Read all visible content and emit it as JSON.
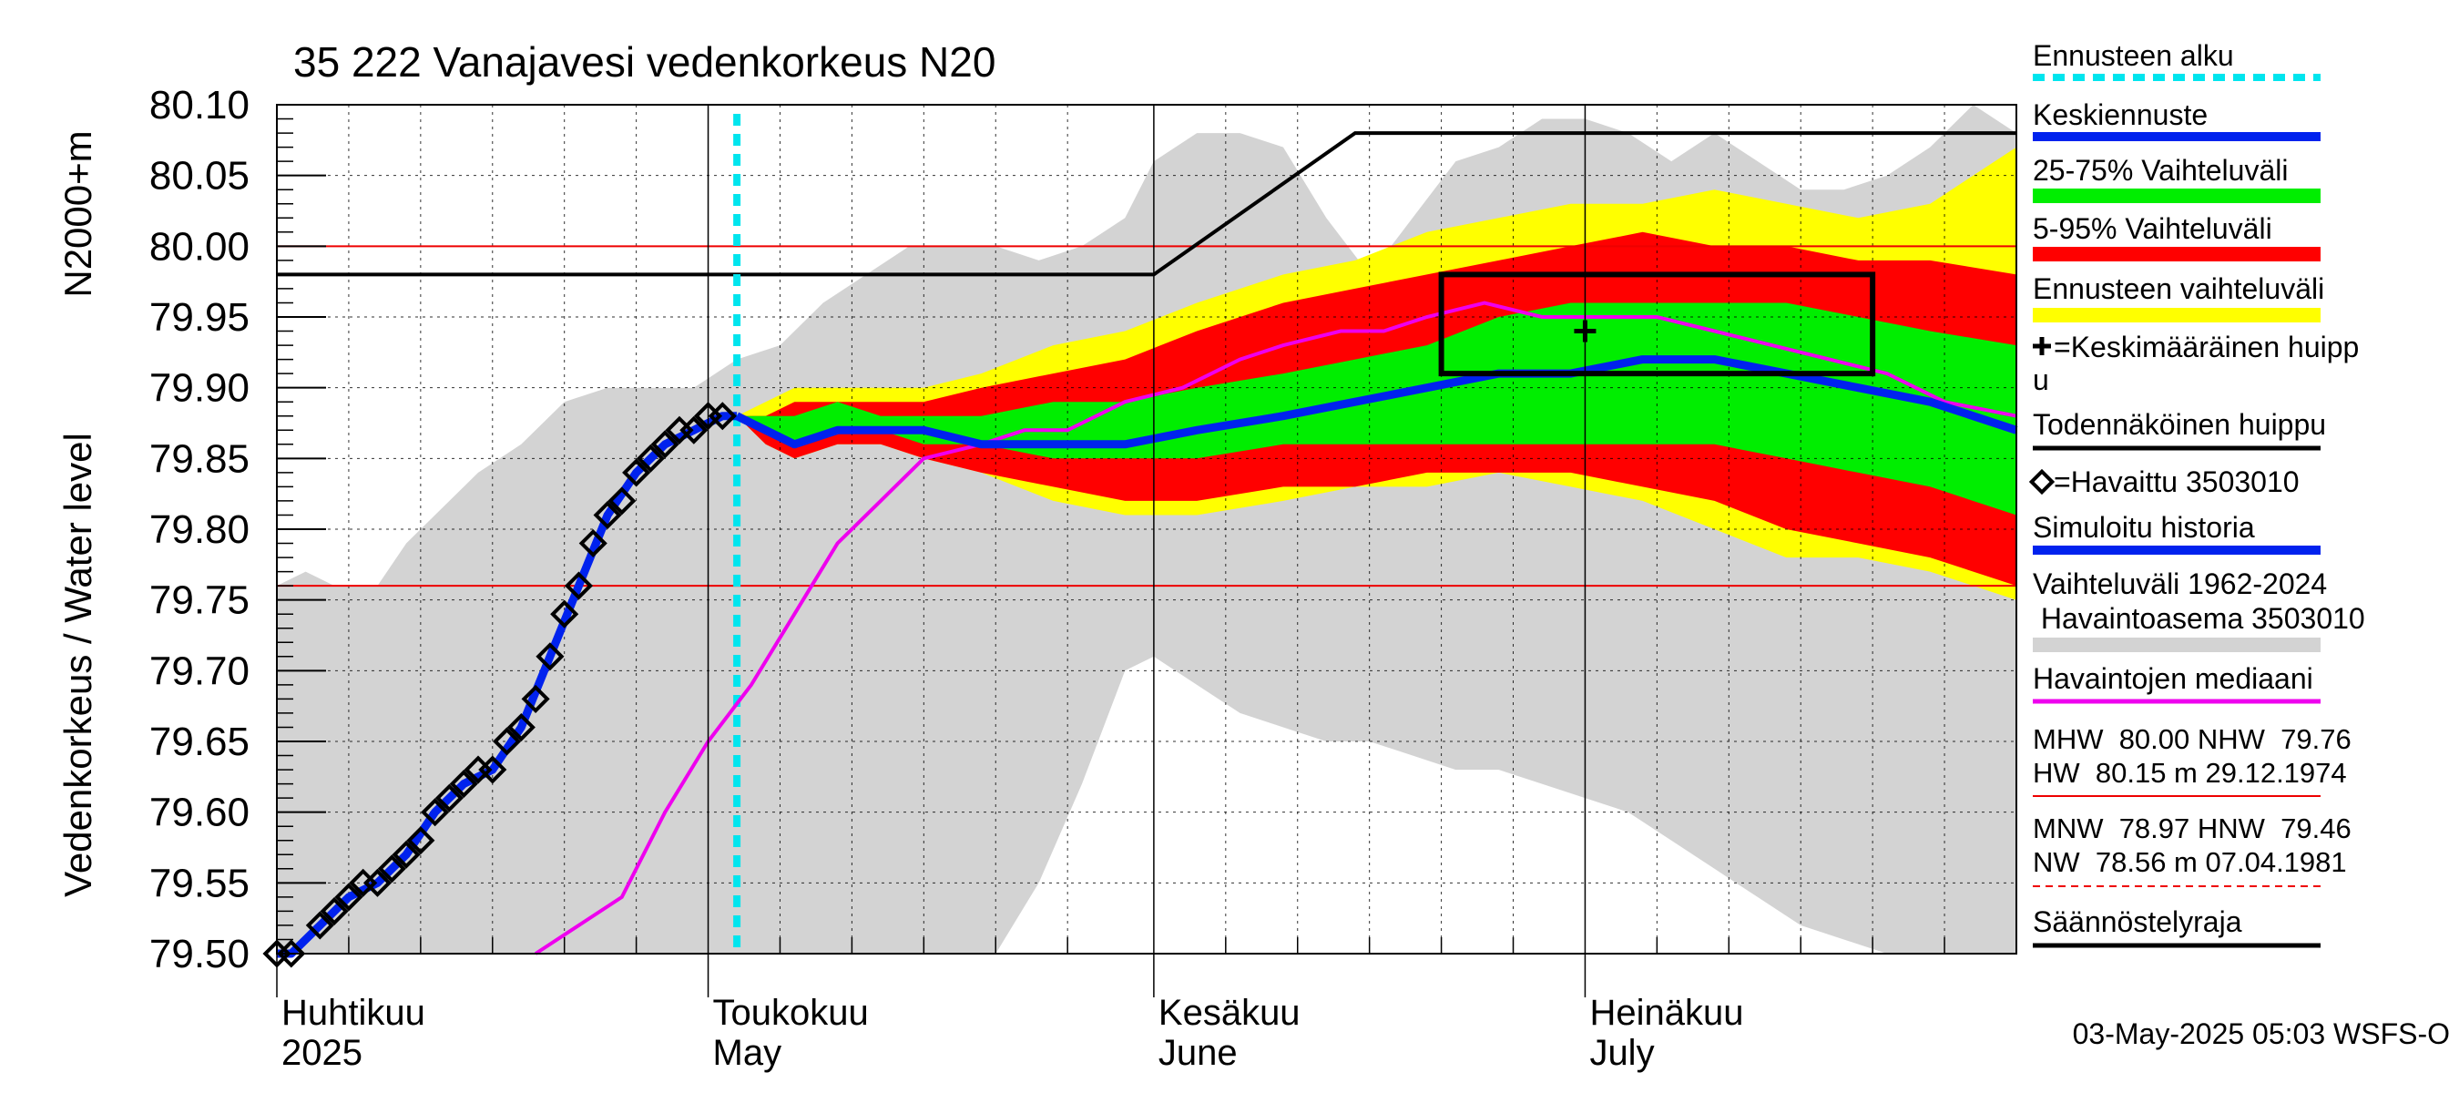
{
  "chart_data": {
    "type": "area",
    "title": "35 222 Vanajavesi vedenkorkeus N20",
    "ylabel_inner": "N2000+m",
    "ylabel_outer": "Vedenkorkeus / Water level",
    "ylim": [
      79.5,
      80.1
    ],
    "y_ticks": [
      "80.10",
      "80.05",
      "80.00",
      "79.95",
      "79.90",
      "79.85",
      "79.80",
      "79.75",
      "79.70",
      "79.65",
      "79.60",
      "79.55",
      "79.50"
    ],
    "x_start": "2025-04-01",
    "x_end": "2025-07-31",
    "grid": true,
    "month_labels": [
      {
        "date": "2025-04-01",
        "line1": "Huhtikuu",
        "line2": "2025"
      },
      {
        "date": "2025-05-01",
        "line1": "Toukokuu",
        "line2": "May"
      },
      {
        "date": "2025-06-01",
        "line1": "Kesäkuu",
        "line2": "June"
      },
      {
        "date": "2025-07-01",
        "line1": "Heinäkuu",
        "line2": "July"
      }
    ],
    "forecast_start": "2025-05-03",
    "reference_lines": {
      "MHW": 80.0,
      "NHW": 79.76
    },
    "historical_range": {
      "x": [
        "2025-04-01",
        "2025-04-03",
        "2025-04-05",
        "2025-04-08",
        "2025-04-10",
        "2025-04-12",
        "2025-04-15",
        "2025-04-18",
        "2025-04-21",
        "2025-04-24",
        "2025-04-27",
        "2025-04-30",
        "2025-05-03",
        "2025-05-06",
        "2025-05-09",
        "2025-05-12",
        "2025-05-15",
        "2025-05-18",
        "2025-05-21",
        "2025-05-24",
        "2025-05-27",
        "2025-05-30",
        "2025-06-01",
        "2025-06-04",
        "2025-06-07",
        "2025-06-10",
        "2025-06-13",
        "2025-06-16",
        "2025-06-19",
        "2025-06-22",
        "2025-06-25",
        "2025-06-28",
        "2025-07-01",
        "2025-07-04",
        "2025-07-07",
        "2025-07-10",
        "2025-07-13",
        "2025-07-16",
        "2025-07-19",
        "2025-07-22",
        "2025-07-25",
        "2025-07-28",
        "2025-07-31"
      ],
      "high": [
        79.76,
        79.77,
        79.76,
        79.76,
        79.79,
        79.81,
        79.84,
        79.86,
        79.89,
        79.9,
        79.9,
        79.9,
        79.92,
        79.93,
        79.96,
        79.98,
        80.0,
        80.0,
        80.0,
        79.99,
        80.0,
        80.02,
        80.06,
        80.08,
        80.08,
        80.07,
        80.02,
        79.98,
        80.02,
        80.06,
        80.07,
        80.09,
        80.09,
        80.08,
        80.06,
        80.08,
        80.06,
        80.04,
        80.04,
        80.05,
        80.07,
        80.1,
        80.08
      ],
      "low": [
        79.5,
        79.5,
        79.5,
        79.5,
        79.5,
        79.5,
        79.5,
        79.5,
        79.5,
        79.5,
        79.5,
        79.5,
        79.5,
        79.5,
        79.5,
        79.5,
        79.5,
        79.5,
        79.5,
        79.55,
        79.62,
        79.7,
        79.71,
        79.69,
        79.67,
        79.66,
        79.65,
        79.65,
        79.64,
        79.63,
        79.63,
        79.62,
        79.61,
        79.6,
        79.58,
        79.56,
        79.54,
        79.52,
        79.51,
        79.5,
        79.5,
        79.5,
        79.5
      ]
    },
    "forecast": {
      "x": [
        "2025-05-03",
        "2025-05-05",
        "2025-05-07",
        "2025-05-10",
        "2025-05-13",
        "2025-05-16",
        "2025-05-20",
        "2025-05-25",
        "2025-05-30",
        "2025-06-04",
        "2025-06-10",
        "2025-06-15",
        "2025-06-20",
        "2025-06-25",
        "2025-06-30",
        "2025-07-05",
        "2025-07-10",
        "2025-07-15",
        "2025-07-20",
        "2025-07-25",
        "2025-07-31"
      ],
      "p_min": [
        79.88,
        79.86,
        79.85,
        79.86,
        79.86,
        79.85,
        79.84,
        79.82,
        79.81,
        79.81,
        79.82,
        79.83,
        79.83,
        79.84,
        79.83,
        79.82,
        79.8,
        79.78,
        79.78,
        79.77,
        79.75
      ],
      "p5": [
        79.88,
        79.86,
        79.85,
        79.86,
        79.86,
        79.85,
        79.84,
        79.83,
        79.82,
        79.82,
        79.83,
        79.83,
        79.84,
        79.84,
        79.84,
        79.83,
        79.82,
        79.8,
        79.79,
        79.78,
        79.76
      ],
      "p25": [
        79.88,
        79.87,
        79.86,
        79.87,
        79.87,
        79.86,
        79.86,
        79.85,
        79.85,
        79.85,
        79.86,
        79.86,
        79.86,
        79.86,
        79.86,
        79.86,
        79.86,
        79.85,
        79.84,
        79.83,
        79.81
      ],
      "median": [
        79.88,
        79.87,
        79.86,
        79.87,
        79.87,
        79.87,
        79.86,
        79.86,
        79.86,
        79.87,
        79.88,
        79.89,
        79.9,
        79.91,
        79.91,
        79.92,
        79.92,
        79.91,
        79.9,
        79.89,
        79.87
      ],
      "p75": [
        79.88,
        79.88,
        79.88,
        79.89,
        79.88,
        79.88,
        79.88,
        79.89,
        79.89,
        79.9,
        79.91,
        79.92,
        79.93,
        79.95,
        79.96,
        79.96,
        79.96,
        79.96,
        79.95,
        79.94,
        79.93
      ],
      "p95": [
        79.88,
        79.88,
        79.89,
        79.89,
        79.89,
        79.89,
        79.9,
        79.91,
        79.92,
        79.94,
        79.96,
        79.97,
        79.98,
        79.99,
        80.0,
        80.01,
        80.0,
        80.0,
        79.99,
        79.99,
        79.98
      ],
      "p_max": [
        79.88,
        79.89,
        79.9,
        79.9,
        79.9,
        79.9,
        79.91,
        79.93,
        79.94,
        79.96,
        79.98,
        79.99,
        80.01,
        80.02,
        80.03,
        80.03,
        80.04,
        80.03,
        80.02,
        80.03,
        80.07
      ]
    },
    "observed": {
      "x": [
        "2025-04-01",
        "2025-04-02",
        "2025-04-04",
        "2025-04-05",
        "2025-04-06",
        "2025-04-07",
        "2025-04-08",
        "2025-04-09",
        "2025-04-10",
        "2025-04-11",
        "2025-04-12",
        "2025-04-13",
        "2025-04-14",
        "2025-04-15",
        "2025-04-16",
        "2025-04-17",
        "2025-04-18",
        "2025-04-19",
        "2025-04-20",
        "2025-04-21",
        "2025-04-22",
        "2025-04-23",
        "2025-04-24",
        "2025-04-25",
        "2025-04-26",
        "2025-04-27",
        "2025-04-28",
        "2025-04-29",
        "2025-04-30",
        "2025-05-01",
        "2025-05-02"
      ],
      "y": [
        79.5,
        79.5,
        79.52,
        79.53,
        79.54,
        79.55,
        79.55,
        79.56,
        79.57,
        79.58,
        79.6,
        79.61,
        79.62,
        79.63,
        79.63,
        79.65,
        79.66,
        79.68,
        79.71,
        79.74,
        79.76,
        79.79,
        79.81,
        79.82,
        79.84,
        79.85,
        79.86,
        79.87,
        79.87,
        79.88,
        79.88
      ]
    },
    "simulated_history": {
      "x": [
        "2025-04-01",
        "2025-04-02",
        "2025-04-04",
        "2025-04-06",
        "2025-04-08",
        "2025-04-10",
        "2025-04-12",
        "2025-04-14",
        "2025-04-16",
        "2025-04-18",
        "2025-04-20",
        "2025-04-22",
        "2025-04-24",
        "2025-04-26",
        "2025-04-28",
        "2025-04-30",
        "2025-05-02",
        "2025-05-03"
      ],
      "y": [
        79.5,
        79.5,
        79.52,
        79.54,
        79.55,
        79.57,
        79.6,
        79.62,
        79.63,
        79.66,
        79.71,
        79.76,
        79.81,
        79.84,
        79.86,
        79.87,
        79.88,
        79.88
      ]
    },
    "median_observed": {
      "x": [
        "2025-04-19",
        "2025-04-22",
        "2025-04-25",
        "2025-04-28",
        "2025-05-01",
        "2025-05-04",
        "2025-05-07",
        "2025-05-10",
        "2025-05-13",
        "2025-05-16",
        "2025-05-20",
        "2025-05-23",
        "2025-05-26",
        "2025-05-30",
        "2025-06-03",
        "2025-06-07",
        "2025-06-10",
        "2025-06-14",
        "2025-06-17",
        "2025-06-20",
        "2025-06-24",
        "2025-06-28",
        "2025-07-02",
        "2025-07-06",
        "2025-07-10",
        "2025-07-14",
        "2025-07-18",
        "2025-07-22",
        "2025-07-26",
        "2025-07-31"
      ],
      "y": [
        79.5,
        79.52,
        79.54,
        79.6,
        79.65,
        79.69,
        79.74,
        79.79,
        79.82,
        79.85,
        79.86,
        79.87,
        79.87,
        79.89,
        79.9,
        79.92,
        79.93,
        79.94,
        79.94,
        79.95,
        79.96,
        79.95,
        79.95,
        79.95,
        79.94,
        79.93,
        79.92,
        79.91,
        79.89,
        79.88
      ]
    },
    "regulation_limit": {
      "x": [
        "2025-04-01",
        "2025-06-01",
        "2025-06-15",
        "2025-07-31"
      ],
      "y": [
        79.98,
        79.98,
        80.08,
        80.08
      ]
    },
    "probable_peak_box": {
      "x0": "2025-06-21",
      "x1": "2025-07-21",
      "y0": 79.91,
      "y1": 79.98
    },
    "mean_peak": {
      "x": "2025-07-01",
      "y": 79.94
    },
    "legend_position": "right",
    "legend": {
      "forecast_start": "Ennusteen alku",
      "mean_forecast": "Keskiennuste",
      "range_25_75": "25-75% Vaihteluväli",
      "range_5_95": "5-95% Vaihteluväli",
      "forecast_range": "Ennusteen vaihteluväli",
      "mean_peak_line1": "=Keskimääräinen huipp",
      "mean_peak_line2": "u",
      "probable_peak": "Todennäköinen huippu",
      "observed": "=Havaittu 3503010",
      "simulated": "Simuloitu historia",
      "hist_range_line1": "Vaihteluväli 1962-2024",
      "hist_range_line2": " Havaintoasema 3503010",
      "median_obs": "Havaintojen mediaani",
      "stats1_line1": "MHW  80.00 NHW  79.76",
      "stats1_line2": "HW  80.15 m 29.12.1974",
      "stats2_line1": "MNW  78.97 HNW  79.46",
      "stats2_line2": "NW  78.56 m 07.04.1981",
      "regulation": "Säännöstelyraja"
    },
    "colors": {
      "historical_range": "#d3d3d3",
      "forecast_range": "#ffff00",
      "range_5_95": "#ff0000",
      "range_25_75": "#00ee00",
      "mean_forecast": "#0022ee",
      "median_obs": "#ee00ee",
      "forecast_start": "#00e5ee",
      "regulation": "#000000",
      "reference_line": "#ee0000"
    },
    "timestamp": "03-May-2025 05:03 WSFS-O"
  }
}
